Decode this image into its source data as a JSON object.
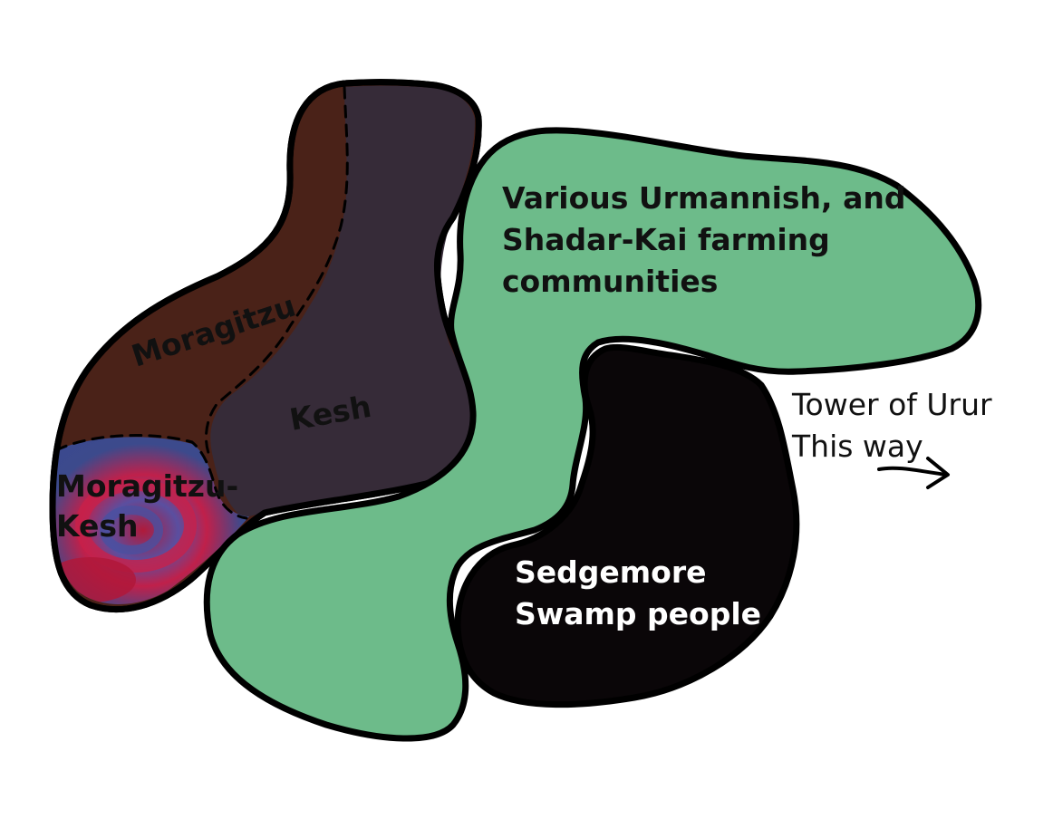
{
  "map": {
    "colors": {
      "moragitzu": "#4a2218",
      "kesh": "#362b38",
      "moragitzu_kesh_red": "#a01838",
      "moragitzu_kesh_blue": "#3c4a8c",
      "farmland": "#6dbb8a",
      "swamp": "#0a0608",
      "outline": "#000000"
    },
    "regions": {
      "moragitzu": {
        "label": "Moragitzu"
      },
      "kesh": {
        "label": "Kesh"
      },
      "moragitzu_kesh": {
        "label_line1": "Moragitzu-",
        "label_line2": "Kesh"
      },
      "farmland": {
        "label_line1": "Various Urmannish, and",
        "label_line2": "Shadar-Kai farming",
        "label_line3": "communities"
      },
      "swamp": {
        "label_line1": "Sedgemore",
        "label_line2": "Swamp people"
      }
    },
    "direction_note": {
      "line1": "Tower of Urur",
      "line2": "This way",
      "arrow_icon": "arrow-right-icon"
    }
  }
}
